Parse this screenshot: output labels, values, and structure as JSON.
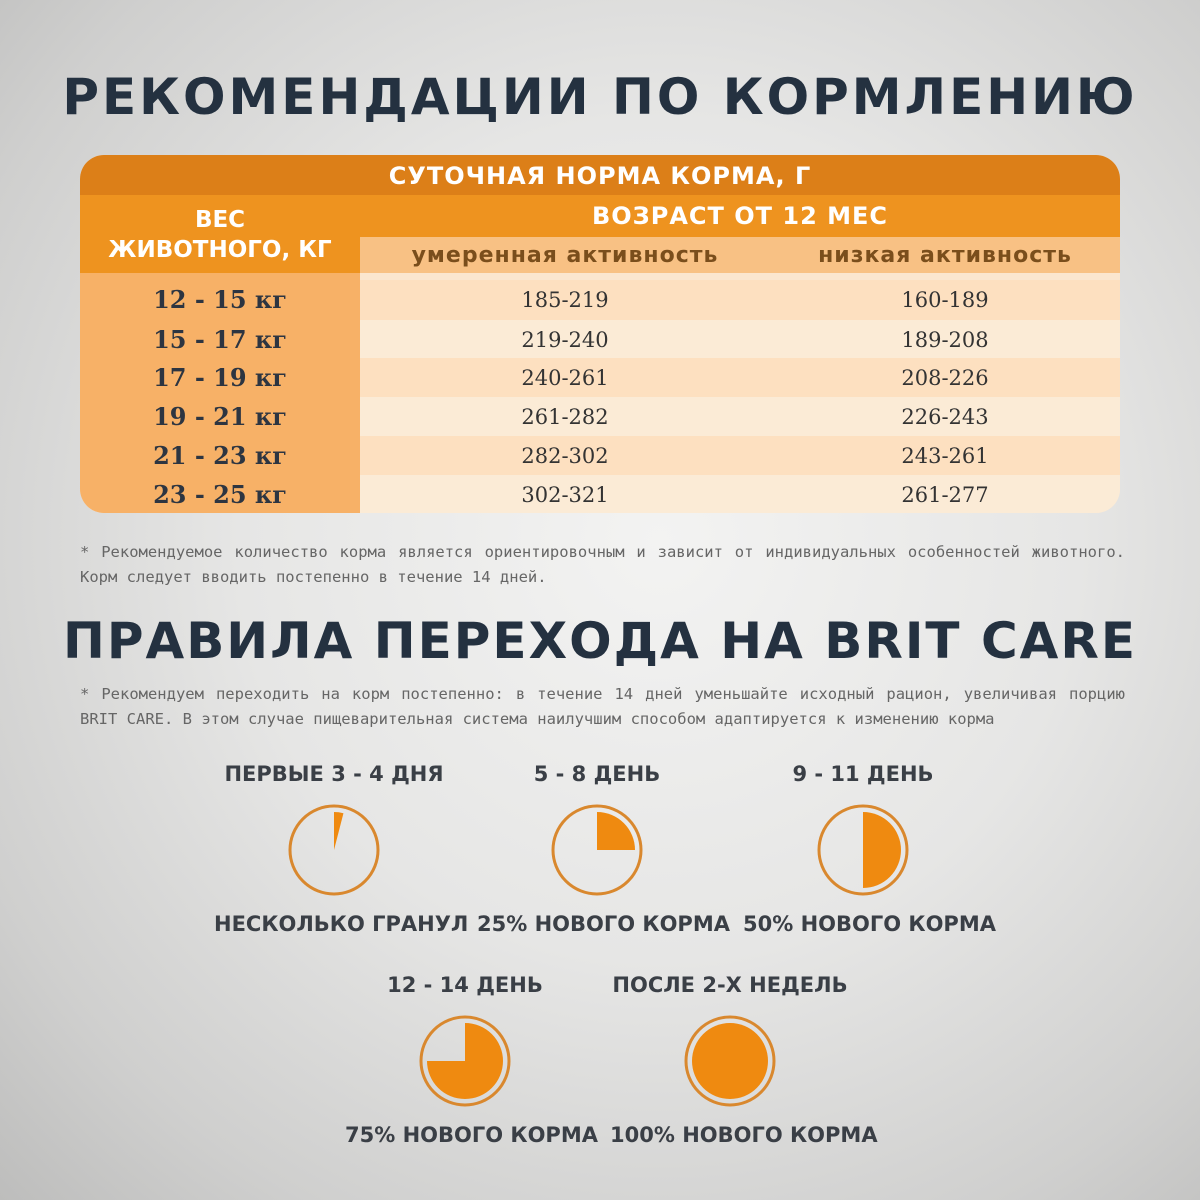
{
  "title_feeding": "РЕКОМЕНДАЦИИ ПО КОРМЛЕНИЮ",
  "table": {
    "header": "СУТОЧНАЯ НОРМА КОРМА, Г",
    "weight_header": "ВЕС\nЖИВОТНОГО, КГ",
    "age_header": "ВОЗРАСТ ОТ 12 МЕС",
    "activity_moderate": "умеренная активность",
    "activity_low": "низкая активность",
    "rows": [
      {
        "weight": "12 - 15 кг",
        "moderate": "185-219",
        "low": "160-189"
      },
      {
        "weight": "15 - 17 кг",
        "moderate": "219-240",
        "low": "189-208"
      },
      {
        "weight": "17 - 19 кг",
        "moderate": "240-261",
        "low": "208-226"
      },
      {
        "weight": "19 - 21 кг",
        "moderate": "261-282",
        "low": "226-243"
      },
      {
        "weight": "21 - 23 кг",
        "moderate": "282-302",
        "low": "243-261"
      },
      {
        "weight": "23 - 25 кг",
        "moderate": "302-321",
        "low": "261-277"
      }
    ]
  },
  "note_feeding": "* Рекомендуемое количество корма является ориентировочным и зависит от индивидуальных особенностей животного. Корм следует вводить постепенно в течение 14 дней.",
  "title_transition": "ПРАВИЛА ПЕРЕХОДА НА BRIT CARE",
  "note_transition": "* Рекомендуем переходить на корм постепенно: в течение 14 дней уменьшайте исходный рацион, увеличивая порцию BRIT CARE. В этом случае пищеварительная система наилучшим способом адаптируется к изменению корма",
  "stages": [
    {
      "label": "ПЕРВЫЕ 3 - 4 ДНЯ",
      "caption": "НЕСКОЛЬКО ГРАНУЛ",
      "fraction": 0.04
    },
    {
      "label": "5 - 8 ДЕНЬ",
      "caption": "25% НОВОГО КОРМА",
      "fraction": 0.25
    },
    {
      "label": "9 - 11 ДЕНЬ",
      "caption": "50% НОВОГО КОРМА",
      "fraction": 0.5
    },
    {
      "label": "12 - 14 ДЕНЬ",
      "caption": "75% НОВОГО КОРМА",
      "fraction": 0.75
    },
    {
      "label": "ПОСЛЕ 2-Х НЕДЕЛЬ",
      "caption": "100% НОВОГО КОРМА",
      "fraction": 1.0
    }
  ],
  "colors": {
    "accent_dark": "#dc7f18",
    "accent": "#ee931f",
    "pie_fill": "#ef8a10",
    "pie_stroke": "#d9882e",
    "title": "#243140"
  }
}
